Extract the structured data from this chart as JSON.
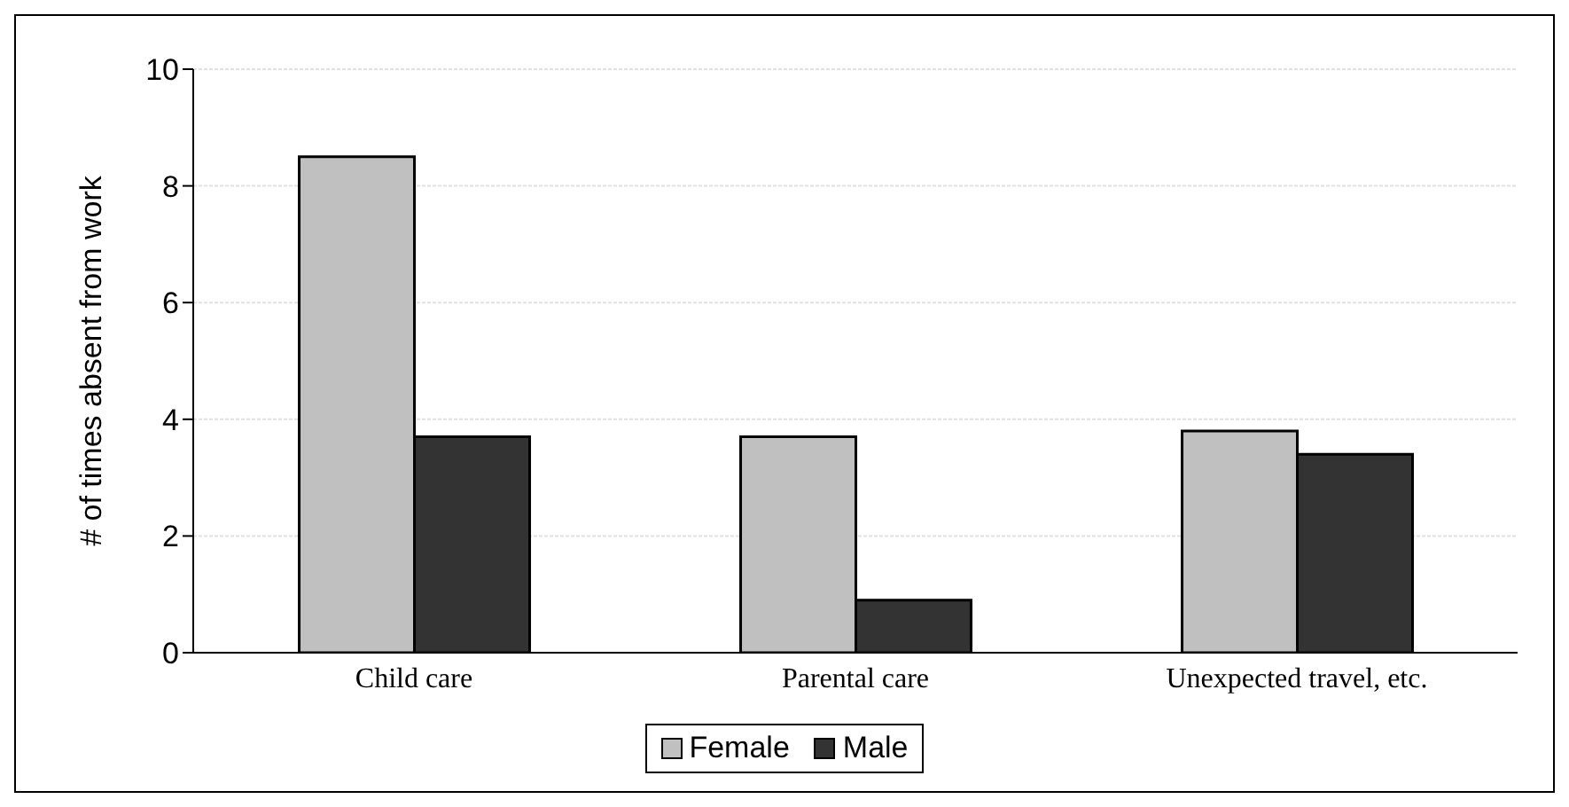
{
  "chart_data": {
    "type": "bar",
    "ylabel": "# of times absent from work",
    "categories": [
      "Child care",
      "Parental care",
      "Unexpected travel, etc."
    ],
    "series": [
      {
        "name": "Female",
        "color": "#c0c0c0",
        "values": [
          8.5,
          3.7,
          3.8
        ]
      },
      {
        "name": "Male",
        "color": "#333333",
        "values": [
          3.7,
          0.9,
          3.4
        ]
      }
    ],
    "ylim": [
      0,
      10
    ],
    "yticks": [
      0,
      2,
      4,
      6,
      8,
      10
    ],
    "grid": "y",
    "legend": "bottom"
  }
}
